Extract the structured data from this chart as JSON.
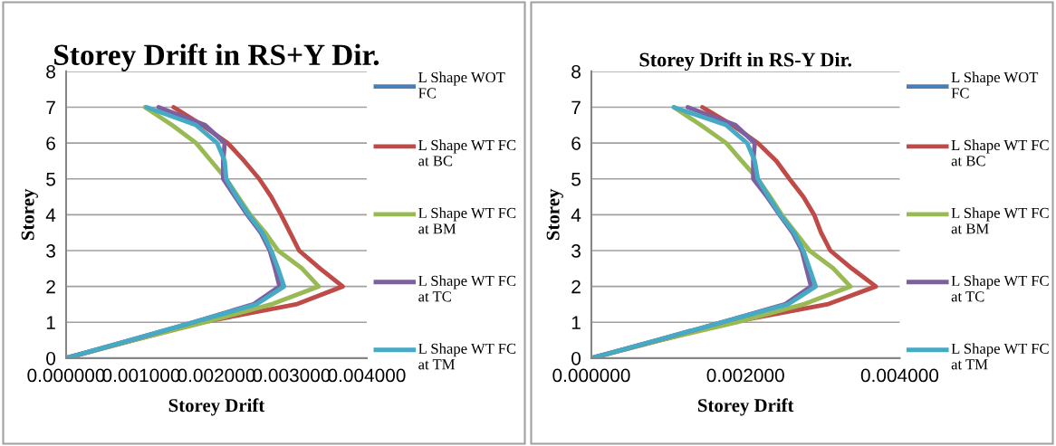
{
  "chart_data": [
    {
      "type": "line",
      "title": "Storey Drift in RS+Y Dir.",
      "xlabel": "Storey Drift",
      "ylabel": "Storey",
      "xlim": [
        0,
        0.004
      ],
      "xticks": [
        {
          "value": 0,
          "label": "0.000000"
        },
        {
          "value": 0.001,
          "label": "0.001000"
        },
        {
          "value": 0.002,
          "label": "0.002000"
        },
        {
          "value": 0.003,
          "label": "0.003000"
        },
        {
          "value": 0.004,
          "label": "0.004000"
        }
      ],
      "ylim": [
        0,
        8
      ],
      "yticks": [
        0,
        1,
        2,
        3,
        4,
        5,
        6,
        7,
        8
      ],
      "grid": "y",
      "legend": "right",
      "marker": "none",
      "line_style": "solid",
      "series": [
        {
          "name": "L Shape WOT FC",
          "color": "#4a7ebb",
          "x": [
            null,
            null,
            null,
            null,
            null,
            null,
            null,
            null,
            null,
            null,
            null,
            null,
            null,
            null,
            null
          ],
          "values": [
            null,
            null,
            null,
            null,
            null,
            null,
            null,
            null,
            null,
            null,
            null,
            null,
            null,
            null,
            null
          ]
        },
        {
          "name": "L Shape WT FC at BC",
          "color": "#be4b48",
          "x": [
            0,
            0.00089,
            0.00181,
            0.00306,
            0.00368,
            0.00338,
            0.0031,
            0.00298,
            0.00286,
            0.00273,
            0.00257,
            0.00237,
            0.00215,
            0.00181,
            0.00143
          ],
          "values": [
            0,
            0.5,
            1,
            1.5,
            2,
            2.5,
            3,
            3.5,
            4,
            4.5,
            5,
            5.5,
            6,
            6.5,
            7
          ]
        },
        {
          "name": "L Shape WT FC at BM",
          "color": "#98b954",
          "x": [
            0,
            0.00089,
            0.00185,
            0.00273,
            0.00336,
            0.00314,
            0.00282,
            0.00265,
            0.00245,
            0.00229,
            0.00213,
            0.00193,
            0.00173,
            0.00141,
            0.00105
          ],
          "values": [
            0,
            0.5,
            1,
            1.5,
            2,
            2.5,
            3,
            3.5,
            4,
            4.5,
            5,
            5.5,
            6,
            6.5,
            7
          ]
        },
        {
          "name": "L Shape WT FC at TC",
          "color": "#7d60a0",
          "x": [
            0,
            0.00085,
            0.00169,
            0.00249,
            0.00284,
            0.00278,
            0.00271,
            0.00259,
            0.00241,
            0.00225,
            0.00209,
            0.00209,
            0.00211,
            0.00185,
            0.00123
          ],
          "values": [
            0,
            0.5,
            1,
            1.5,
            2,
            2.5,
            3,
            3.5,
            4,
            4.5,
            5,
            5.5,
            6,
            6.5,
            7
          ]
        },
        {
          "name": "L Shape WT FC at TM",
          "color": "#46aac5",
          "x": [
            0,
            0.00085,
            0.00169,
            0.00253,
            0.0029,
            0.00282,
            0.00273,
            0.00261,
            0.00243,
            0.00227,
            0.00213,
            0.00211,
            0.00201,
            0.00173,
            0.00107
          ],
          "values": [
            0,
            0.5,
            1,
            1.5,
            2,
            2.5,
            3,
            3.5,
            4,
            4.5,
            5,
            5.5,
            6,
            6.5,
            7
          ]
        }
      ]
    },
    {
      "type": "line",
      "title": "Storey Drift in RS-Y Dir.",
      "xlabel": "Storey Drift",
      "ylabel": "Storey",
      "xlim": [
        0,
        0.004
      ],
      "xticks": [
        {
          "value": 0,
          "label": "0.000000"
        },
        {
          "value": 0.002,
          "label": "0.002000"
        },
        {
          "value": 0.004,
          "label": "0.004000"
        }
      ],
      "ylim": [
        0,
        8
      ],
      "yticks": [
        0,
        1,
        2,
        3,
        4,
        5,
        6,
        7,
        8
      ],
      "grid": "y",
      "legend": "right",
      "marker": "none",
      "line_style": "solid",
      "series": [
        {
          "name": "L Shape WOT FC",
          "color": "#4a7ebb",
          "x": [
            null,
            null,
            null,
            null,
            null,
            null,
            null,
            null,
            null,
            null,
            null,
            null,
            null,
            null,
            null
          ],
          "values": [
            null,
            null,
            null,
            null,
            null,
            null,
            null,
            null,
            null,
            null,
            null,
            null,
            null,
            null,
            null
          ]
        },
        {
          "name": "L Shape WT FC at BC",
          "color": "#be4b48",
          "x": [
            0,
            0.00089,
            0.00181,
            0.00306,
            0.00369,
            0.00338,
            0.0031,
            0.00298,
            0.00289,
            0.00275,
            0.00257,
            0.0024,
            0.00216,
            0.00183,
            0.00144
          ],
          "values": [
            0,
            0.5,
            1,
            1.5,
            2,
            2.5,
            3,
            3.5,
            4,
            4.5,
            5,
            5.5,
            6,
            6.5,
            7
          ]
        },
        {
          "name": "L Shape WT FC at BM",
          "color": "#98b954",
          "x": [
            0,
            0.00089,
            0.00189,
            0.00275,
            0.00336,
            0.00314,
            0.00283,
            0.00265,
            0.00247,
            0.00232,
            0.00216,
            0.00195,
            0.00175,
            0.00142,
            0.00107
          ],
          "values": [
            0,
            0.5,
            1,
            1.5,
            2,
            2.5,
            3,
            3.5,
            4,
            4.5,
            5,
            5.5,
            6,
            6.5,
            7
          ]
        },
        {
          "name": "L Shape WT FC at TC",
          "color": "#7d60a0",
          "x": [
            0,
            0.00085,
            0.00169,
            0.00251,
            0.00285,
            0.00279,
            0.00273,
            0.00261,
            0.00244,
            0.00228,
            0.0021,
            0.0021,
            0.00212,
            0.00187,
            0.00125
          ],
          "values": [
            0,
            0.5,
            1,
            1.5,
            2,
            2.5,
            3,
            3.5,
            4,
            4.5,
            5,
            5.5,
            6,
            6.5,
            7
          ]
        },
        {
          "name": "L Shape WT FC at TM",
          "color": "#46aac5",
          "x": [
            0,
            0.00085,
            0.00169,
            0.00255,
            0.00291,
            0.00283,
            0.00275,
            0.00263,
            0.00245,
            0.0023,
            0.00216,
            0.00212,
            0.00202,
            0.00175,
            0.00107
          ],
          "values": [
            0,
            0.5,
            1,
            1.5,
            2,
            2.5,
            3,
            3.5,
            4,
            4.5,
            5,
            5.5,
            6,
            6.5,
            7
          ]
        }
      ]
    }
  ]
}
